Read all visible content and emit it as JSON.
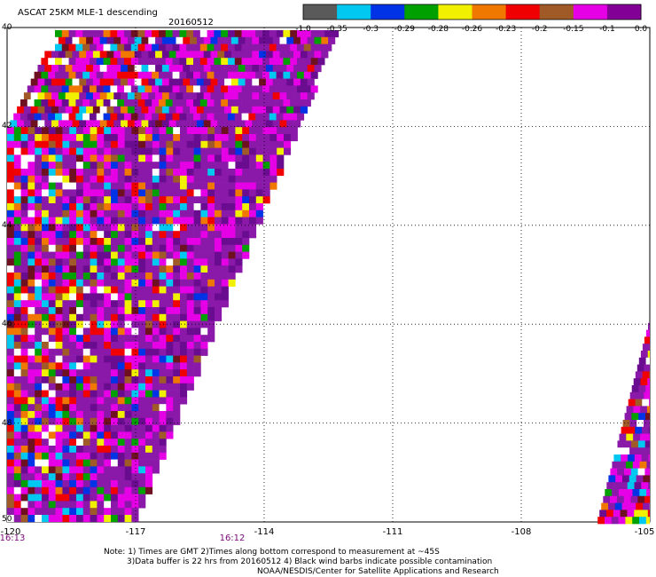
{
  "header": {
    "title": "ASCAT 25KM MLE-1 descending",
    "date": "20160512"
  },
  "colorbar": {
    "swatches": [
      "#5a5a5a",
      "#00c8f0",
      "#0032e6",
      "#00a000",
      "#f0f000",
      "#f07800",
      "#f00000",
      "#a05a28",
      "#e600e6",
      "#820096"
    ],
    "labels": [
      "-1.0",
      "-0.35",
      "-0.3",
      "-0.29",
      "-0.28",
      "-0.26",
      "-0.23",
      "-0.2",
      "-0.15",
      "-0.1",
      "0.0"
    ]
  },
  "axes": {
    "x_ticks": [
      "-120",
      "-117",
      "-114",
      "-111",
      "-108",
      "-105"
    ],
    "y_ticks": [
      "40",
      "42",
      "44",
      "46",
      "48",
      "50"
    ]
  },
  "map": {
    "lon_range": [
      -120,
      -105
    ],
    "lat_range": [
      40,
      50
    ],
    "swath_colors": {
      "base": "#8a18a8",
      "dark": "#6a0c90",
      "magenta": "#e600e6",
      "red": "#f00000",
      "orange": "#f07800",
      "yellow": "#f0f000",
      "brown": "#a05a28",
      "maroon": "#6e1020",
      "green": "#00a000",
      "blue": "#0032e6",
      "cyan": "#00c8f0",
      "white": "#ffffff"
    }
  },
  "times": [
    {
      "label": "16:13"
    },
    {
      "label": "16:12"
    }
  ],
  "notes": {
    "line1": "Note: 1) Times are GMT 2)Times along bottom correspond to measurement at ~45S",
    "line2": "3)Data buffer is 22 hrs from 20160512 4) Black wind barbs indicate possible contamination",
    "line3": "NOAA/NESDIS/Center for Satellite Applications and Research"
  }
}
